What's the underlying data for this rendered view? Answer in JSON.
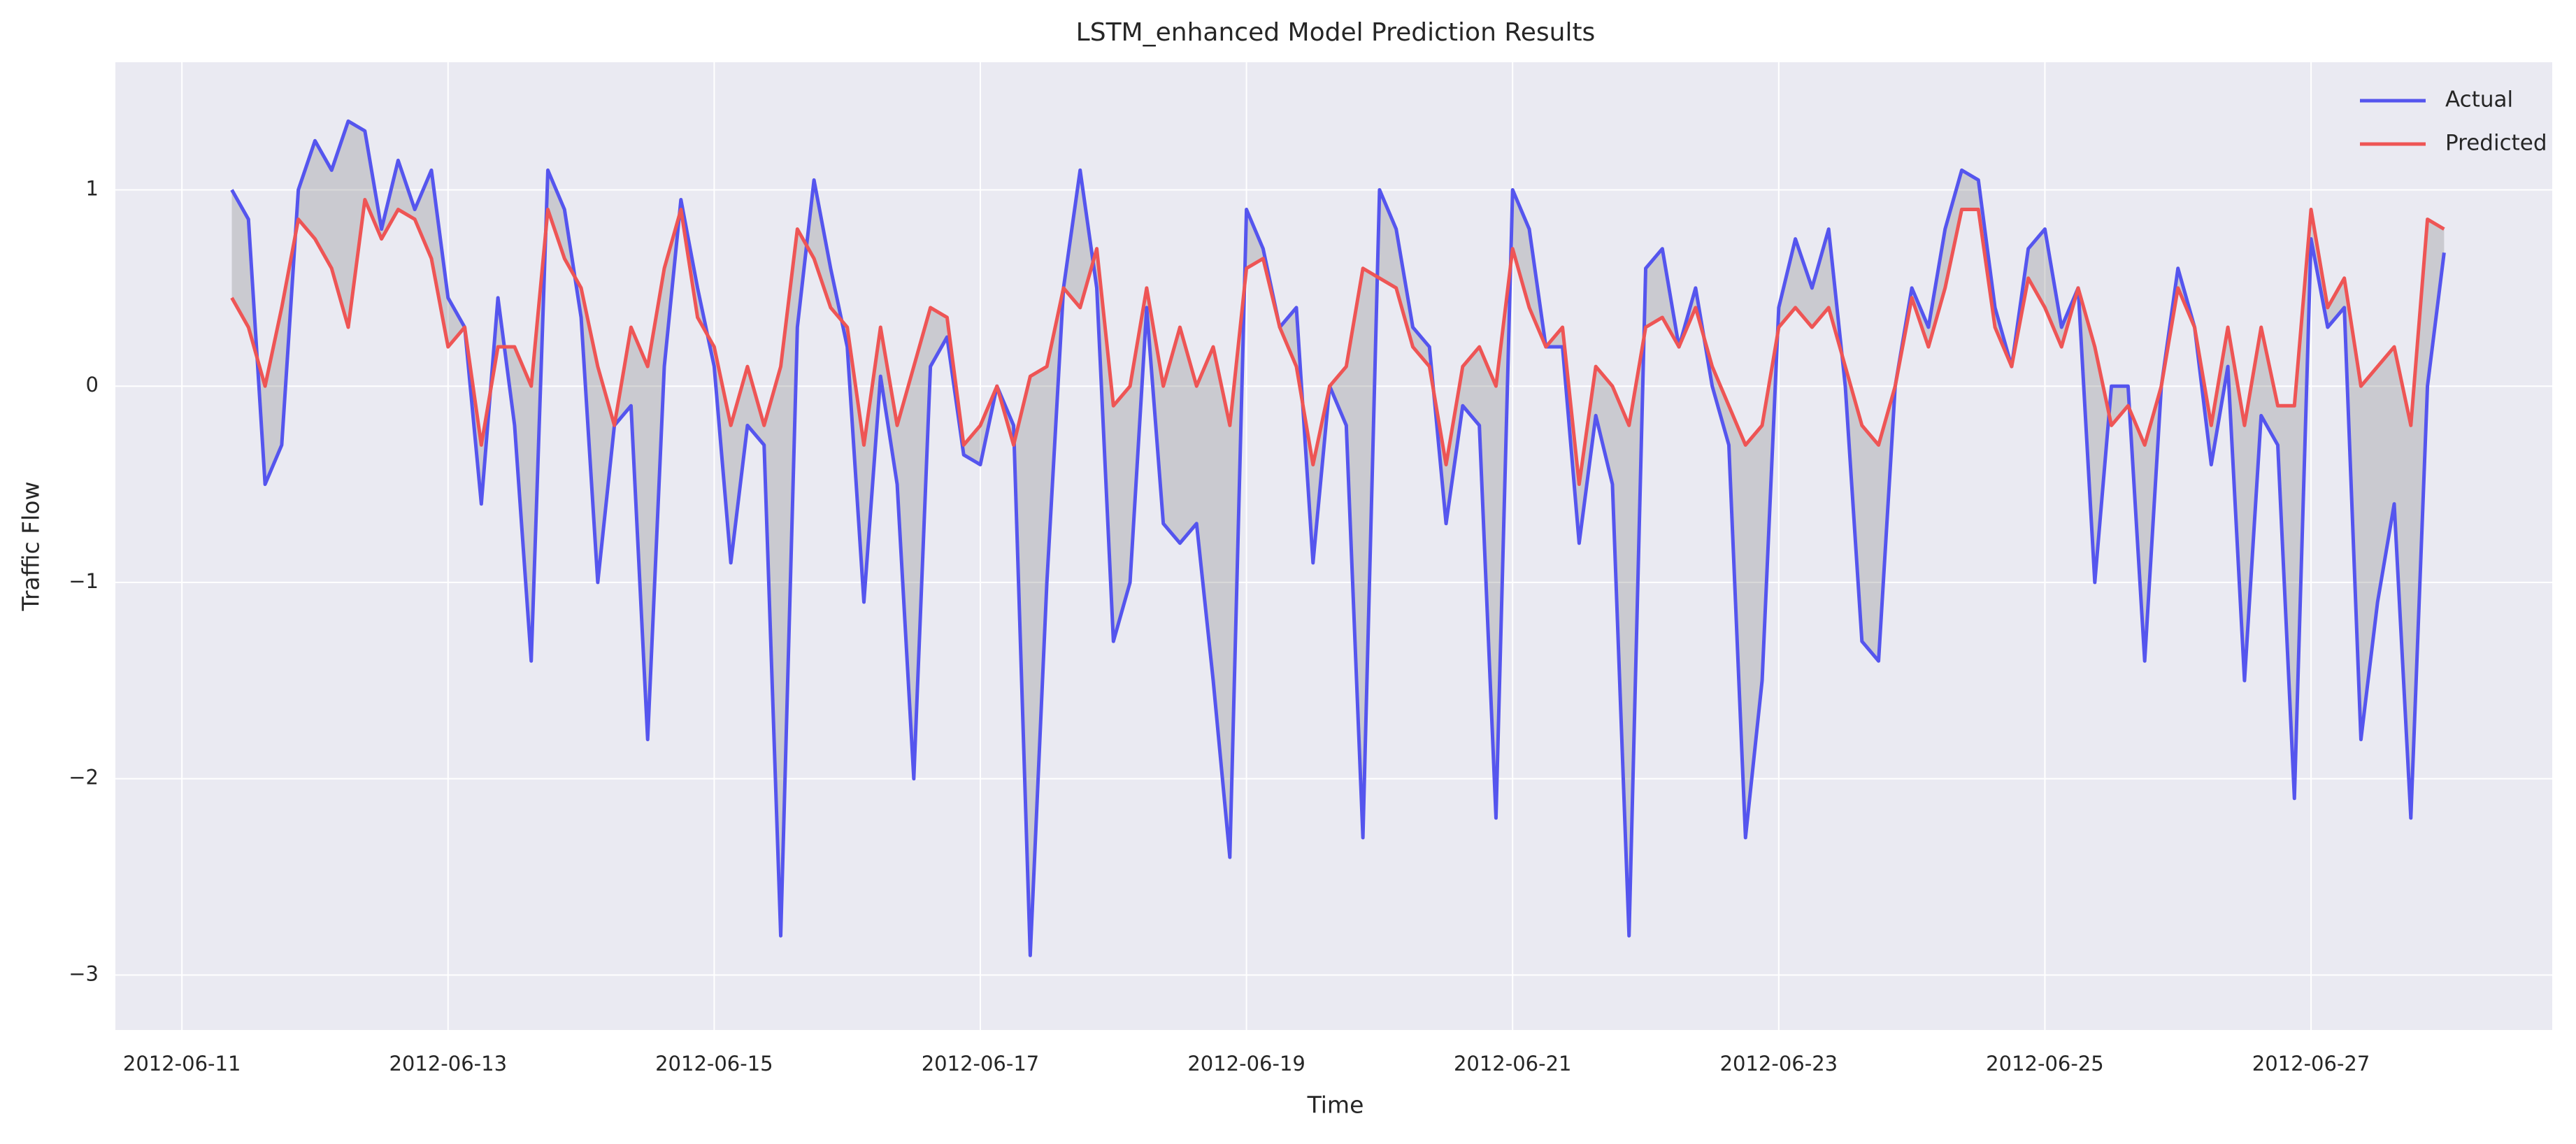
{
  "chart_data": {
    "type": "line",
    "title": "LSTM_enhanced Model Prediction Results",
    "x_label": "Time",
    "y_label": "Traffic Flow",
    "x": [
      "2012-06-11 09:00",
      "2012-06-11 12:00",
      "2012-06-11 15:00",
      "2012-06-11 18:00",
      "2012-06-11 21:00",
      "2012-06-12 00:00",
      "2012-06-12 03:00",
      "2012-06-12 06:00",
      "2012-06-12 09:00",
      "2012-06-12 12:00",
      "2012-06-12 15:00",
      "2012-06-12 18:00",
      "2012-06-12 21:00",
      "2012-06-13 00:00",
      "2012-06-13 03:00",
      "2012-06-13 06:00",
      "2012-06-13 09:00",
      "2012-06-13 12:00",
      "2012-06-13 15:00",
      "2012-06-13 18:00",
      "2012-06-13 21:00",
      "2012-06-14 00:00",
      "2012-06-14 03:00",
      "2012-06-14 06:00",
      "2012-06-14 09:00",
      "2012-06-14 12:00",
      "2012-06-14 15:00",
      "2012-06-14 18:00",
      "2012-06-14 21:00",
      "2012-06-15 00:00",
      "2012-06-15 03:00",
      "2012-06-15 06:00",
      "2012-06-15 09:00",
      "2012-06-15 12:00",
      "2012-06-15 15:00",
      "2012-06-15 18:00",
      "2012-06-15 21:00",
      "2012-06-16 00:00",
      "2012-06-16 03:00",
      "2012-06-16 06:00",
      "2012-06-16 09:00",
      "2012-06-16 12:00",
      "2012-06-16 15:00",
      "2012-06-16 18:00",
      "2012-06-16 21:00",
      "2012-06-17 00:00",
      "2012-06-17 03:00",
      "2012-06-17 06:00",
      "2012-06-17 09:00",
      "2012-06-17 12:00",
      "2012-06-17 15:00",
      "2012-06-17 18:00",
      "2012-06-17 21:00",
      "2012-06-18 00:00",
      "2012-06-18 03:00",
      "2012-06-18 06:00",
      "2012-06-18 09:00",
      "2012-06-18 12:00",
      "2012-06-18 15:00",
      "2012-06-18 18:00",
      "2012-06-18 21:00",
      "2012-06-19 00:00",
      "2012-06-19 03:00",
      "2012-06-19 06:00",
      "2012-06-19 09:00",
      "2012-06-19 12:00",
      "2012-06-19 15:00",
      "2012-06-19 18:00",
      "2012-06-19 21:00",
      "2012-06-20 00:00",
      "2012-06-20 03:00",
      "2012-06-20 06:00",
      "2012-06-20 09:00",
      "2012-06-20 12:00",
      "2012-06-20 15:00",
      "2012-06-20 18:00",
      "2012-06-20 21:00",
      "2012-06-21 00:00",
      "2012-06-21 03:00",
      "2012-06-21 06:00",
      "2012-06-21 09:00",
      "2012-06-21 12:00",
      "2012-06-21 15:00",
      "2012-06-21 18:00",
      "2012-06-21 21:00",
      "2012-06-22 00:00",
      "2012-06-22 03:00",
      "2012-06-22 06:00",
      "2012-06-22 09:00",
      "2012-06-22 12:00",
      "2012-06-22 15:00",
      "2012-06-22 18:00",
      "2012-06-22 21:00",
      "2012-06-23 00:00",
      "2012-06-23 03:00",
      "2012-06-23 06:00",
      "2012-06-23 09:00",
      "2012-06-23 12:00",
      "2012-06-23 15:00",
      "2012-06-23 18:00",
      "2012-06-23 21:00",
      "2012-06-24 00:00",
      "2012-06-24 03:00",
      "2012-06-24 06:00",
      "2012-06-24 09:00",
      "2012-06-24 12:00",
      "2012-06-24 15:00",
      "2012-06-24 18:00",
      "2012-06-24 21:00",
      "2012-06-25 00:00",
      "2012-06-25 03:00",
      "2012-06-25 06:00",
      "2012-06-25 09:00",
      "2012-06-25 12:00",
      "2012-06-25 15:00",
      "2012-06-25 18:00",
      "2012-06-25 21:00",
      "2012-06-26 00:00",
      "2012-06-26 03:00",
      "2012-06-26 06:00",
      "2012-06-26 09:00",
      "2012-06-26 12:00",
      "2012-06-26 15:00",
      "2012-06-26 18:00",
      "2012-06-26 21:00",
      "2012-06-27 00:00",
      "2012-06-27 03:00",
      "2012-06-27 06:00",
      "2012-06-27 09:00",
      "2012-06-27 12:00",
      "2012-06-27 15:00",
      "2012-06-27 18:00",
      "2012-06-27 21:00",
      "2012-06-28 00:00"
    ],
    "series": [
      {
        "name": "Actual",
        "color": "#5555ee",
        "values": [
          1.0,
          0.85,
          -0.5,
          -0.3,
          1.0,
          1.25,
          1.1,
          1.35,
          1.3,
          0.8,
          1.15,
          0.9,
          1.1,
          0.45,
          0.3,
          -0.6,
          0.45,
          -0.2,
          -1.4,
          1.1,
          0.9,
          0.35,
          -1.0,
          -0.2,
          -0.1,
          -1.8,
          0.1,
          0.95,
          0.5,
          0.1,
          -0.9,
          -0.2,
          -0.3,
          -2.8,
          0.3,
          1.05,
          0.6,
          0.2,
          -1.1,
          0.05,
          -0.5,
          -2.0,
          0.1,
          0.25,
          -0.35,
          -0.4,
          0.0,
          -0.2,
          -2.9,
          -1.0,
          0.5,
          1.1,
          0.5,
          -1.3,
          -1.0,
          0.4,
          -0.7,
          -0.8,
          -0.7,
          -1.5,
          -2.4,
          0.9,
          0.7,
          0.3,
          0.4,
          -0.9,
          0.0,
          -0.2,
          -2.3,
          1.0,
          0.8,
          0.3,
          0.2,
          -0.7,
          -0.1,
          -0.2,
          -2.2,
          1.0,
          0.8,
          0.2,
          0.2,
          -0.8,
          -0.15,
          -0.5,
          -2.8,
          0.6,
          0.7,
          0.2,
          0.5,
          0.0,
          -0.3,
          -2.3,
          -1.5,
          0.4,
          0.75,
          0.5,
          0.8,
          0.0,
          -1.3,
          -1.4,
          0.0,
          0.5,
          0.3,
          0.8,
          1.1,
          1.05,
          0.4,
          0.1,
          0.7,
          0.8,
          0.3,
          0.5,
          -1.0,
          0.0,
          0.0,
          -1.4,
          0.0,
          0.6,
          0.3,
          -0.4,
          0.1,
          -1.5,
          -0.15,
          -0.3,
          -2.1,
          0.75,
          0.3,
          0.4,
          -1.8,
          -1.1,
          -0.6,
          -2.2,
          0.0,
          0.68
        ]
      },
      {
        "name": "Predicted",
        "color": "#ee5555",
        "values": [
          0.45,
          0.3,
          0.0,
          0.4,
          0.85,
          0.75,
          0.6,
          0.3,
          0.95,
          0.75,
          0.9,
          0.85,
          0.65,
          0.2,
          0.3,
          -0.3,
          0.2,
          0.2,
          0.0,
          0.9,
          0.65,
          0.5,
          0.1,
          -0.2,
          0.3,
          0.1,
          0.6,
          0.9,
          0.35,
          0.2,
          -0.2,
          0.1,
          -0.2,
          0.1,
          0.8,
          0.65,
          0.4,
          0.3,
          -0.3,
          0.3,
          -0.2,
          0.1,
          0.4,
          0.35,
          -0.3,
          -0.2,
          0.0,
          -0.3,
          0.05,
          0.1,
          0.5,
          0.4,
          0.7,
          -0.1,
          0.0,
          0.5,
          0.0,
          0.3,
          0.0,
          0.2,
          -0.2,
          0.6,
          0.65,
          0.3,
          0.1,
          -0.4,
          0.0,
          0.1,
          0.6,
          0.55,
          0.5,
          0.2,
          0.1,
          -0.4,
          0.1,
          0.2,
          0.0,
          0.7,
          0.4,
          0.2,
          0.3,
          -0.5,
          0.1,
          0.0,
          -0.2,
          0.3,
          0.35,
          0.2,
          0.4,
          0.1,
          -0.1,
          -0.3,
          -0.2,
          0.3,
          0.4,
          0.3,
          0.4,
          0.1,
          -0.2,
          -0.3,
          0.0,
          0.45,
          0.2,
          0.5,
          0.9,
          0.9,
          0.3,
          0.1,
          0.55,
          0.4,
          0.2,
          0.5,
          0.2,
          -0.2,
          -0.1,
          -0.3,
          0.0,
          0.5,
          0.3,
          -0.2,
          0.3,
          -0.2,
          0.3,
          -0.1,
          -0.1,
          0.9,
          0.4,
          0.55,
          0.0,
          0.1,
          0.2,
          -0.2,
          0.85,
          0.8
        ]
      }
    ],
    "fill_between": true,
    "xlim": [
      "2012-06-10 12:00",
      "2012-06-28 19:30"
    ],
    "xticks": [
      "2012-06-11",
      "2012-06-13",
      "2012-06-15",
      "2012-06-17",
      "2012-06-19",
      "2012-06-21",
      "2012-06-23",
      "2012-06-25",
      "2012-06-27"
    ],
    "ylim": [
      -3.28,
      1.65
    ],
    "yticks": [
      {
        "value": -3,
        "label": "−3"
      },
      {
        "value": -2,
        "label": "−2"
      },
      {
        "value": -1,
        "label": "−1"
      },
      0,
      1
    ],
    "grid": true,
    "legend": "upper right"
  }
}
